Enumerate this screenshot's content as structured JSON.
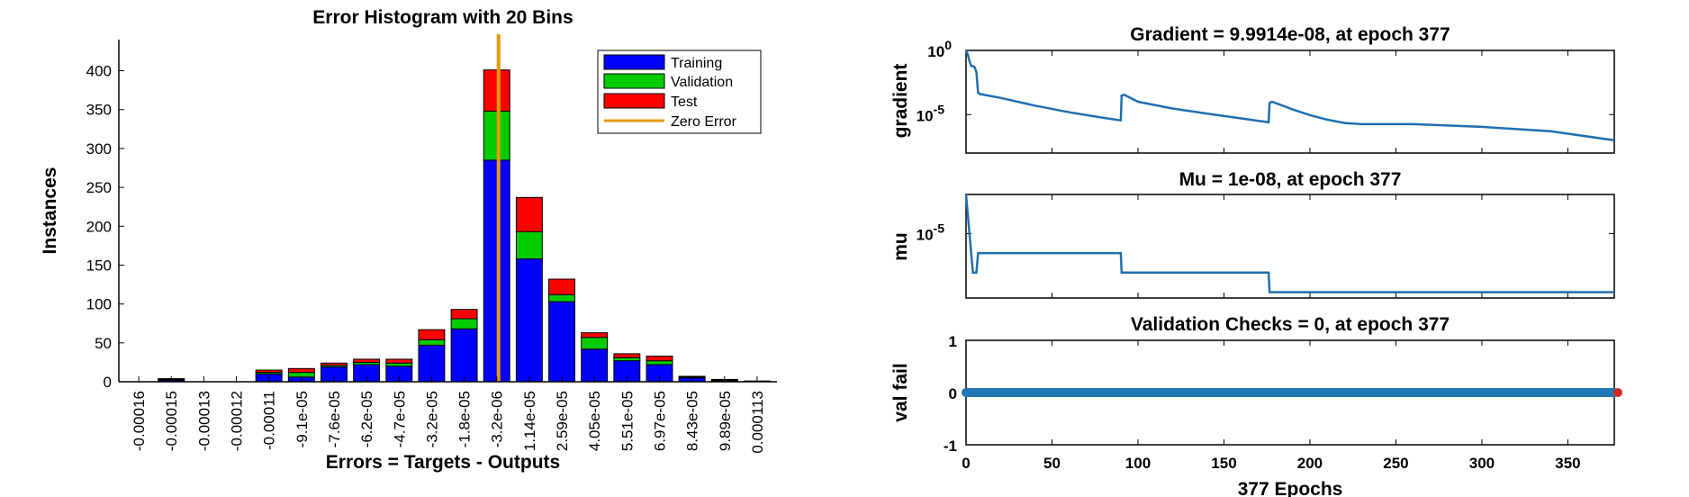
{
  "histogram": {
    "title": "Error Histogram with 20 Bins",
    "xlabel": "Errors = Targets - Outputs",
    "ylabel": "Instances",
    "yticks": [
      0,
      50,
      100,
      150,
      200,
      250,
      300,
      350,
      400
    ],
    "ylim": [
      0,
      440
    ],
    "legend": {
      "training": "Training",
      "validation": "Validation",
      "test": "Test",
      "zero_error": "Zero Error"
    },
    "colors": {
      "training": "#0000ff",
      "validation": "#00cc00",
      "test": "#ff0000",
      "zero_error": "#e69900"
    }
  },
  "chart_data": [
    {
      "type": "bar",
      "stacked": true,
      "title": "Error Histogram with 20 Bins",
      "xlabel": "Errors = Targets - Outputs",
      "ylabel": "Instances",
      "ylim": [
        0,
        440
      ],
      "categories": [
        "-0.00016",
        "-0.00015",
        "-0.00013",
        "-0.00012",
        "-0.00011",
        "-9.1e-05",
        "-7.6e-05",
        "-6.2e-05",
        "-4.7e-05",
        "-3.2e-05",
        "-1.8e-05",
        "-3.2e-06",
        "1.14e-05",
        "2.59e-05",
        "4.05e-05",
        "5.51e-05",
        "6.97e-05",
        "8.43e-05",
        "9.89e-05",
        "0.000113"
      ],
      "series": [
        {
          "name": "Training",
          "values": [
            0,
            2,
            0,
            0,
            10,
            6,
            19,
            22,
            20,
            47,
            68,
            285,
            158,
            103,
            42,
            27,
            22,
            5,
            1,
            1
          ]
        },
        {
          "name": "Validation",
          "values": [
            0,
            1,
            0,
            0,
            2,
            6,
            2,
            3,
            4,
            7,
            13,
            63,
            35,
            9,
            15,
            4,
            5,
            1,
            1,
            0
          ]
        },
        {
          "name": "Test",
          "values": [
            0,
            1,
            0,
            0,
            3,
            5,
            3,
            4,
            5,
            13,
            12,
            53,
            44,
            20,
            6,
            5,
            6,
            1,
            1,
            0
          ]
        }
      ],
      "zero_error_category": "-3.2e-06",
      "legend_position": "top-right"
    },
    {
      "type": "line",
      "title": "Gradient = 9.9914e-08, at epoch 377",
      "ylabel": "gradient",
      "yscale": "log",
      "ylim": [
        1e-08,
        1
      ],
      "yticks": [
        {
          "value": 1,
          "label": "10",
          "exp": "0"
        },
        {
          "value": 1e-05,
          "label": "10",
          "exp": "-5"
        }
      ],
      "xlim": [
        0,
        377
      ],
      "x": [
        0,
        1,
        2,
        3,
        4,
        5,
        6,
        7,
        8,
        20,
        40,
        60,
        80,
        90,
        90.5,
        92,
        100,
        120,
        140,
        160,
        176,
        176.5,
        178,
        190,
        200,
        210,
        220,
        230,
        260,
        300,
        340,
        377
      ],
      "y": [
        1,
        0.5,
        0.15,
        0.06,
        0.06,
        0.05,
        0.02,
        0.0005,
        0.0004,
        0.0002,
        5e-05,
        1.5e-05,
        5.5e-06,
        3.5e-06,
        0.0003,
        0.00035,
        0.0001,
        3e-05,
        1.2e-05,
        5e-06,
        2.5e-06,
        8e-05,
        0.0001,
        2.5e-05,
        9e-06,
        4e-06,
        2.2e-06,
        1.8e-06,
        1.8e-06,
        1.1e-06,
        5e-07,
        9.9914e-08
      ]
    },
    {
      "type": "line",
      "title": "Mu = 1e-08, at epoch 377",
      "ylabel": "mu",
      "yscale": "log",
      "ylim": [
        5e-09,
        0.001
      ],
      "yticks": [
        {
          "value": 1e-05,
          "label": "10",
          "exp": "-5"
        }
      ],
      "xlim": [
        0,
        377
      ],
      "x": [
        0,
        1,
        2,
        3,
        4,
        5,
        6,
        7,
        8,
        90,
        90.5,
        176,
        176.5,
        377
      ],
      "y": [
        0.001,
        0.0001,
        1e-05,
        1e-06,
        1e-07,
        1e-07,
        1e-07,
        1e-06,
        1e-06,
        1e-06,
        1e-07,
        1e-07,
        1e-08,
        1e-08
      ]
    },
    {
      "type": "scatter",
      "title": "Validation Checks = 0, at epoch 377",
      "xlabel": "377 Epochs",
      "ylabel": "val fail",
      "ylim": [
        -1,
        1
      ],
      "yticks": [
        -1,
        0,
        1
      ],
      "xlim": [
        0,
        377
      ],
      "xticks": [
        0,
        50,
        100,
        150,
        200,
        250,
        300,
        350
      ],
      "y_constant": 0,
      "n_points": 378,
      "marker_color": "#1f77b4",
      "end_marker_color": "#d62728"
    }
  ]
}
